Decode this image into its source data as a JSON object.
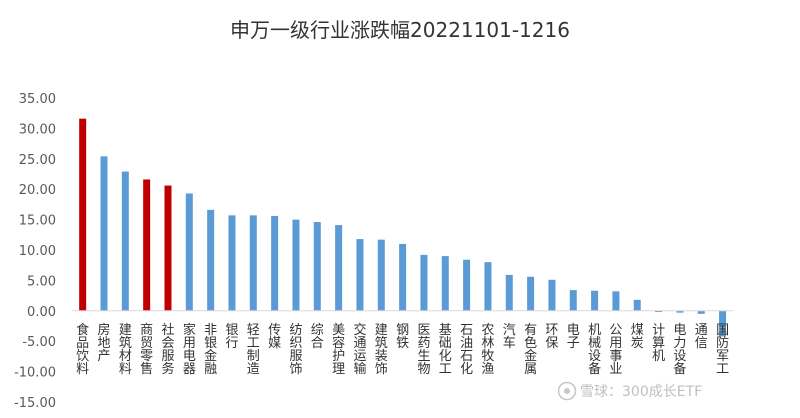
{
  "chart_data": {
    "type": "bar",
    "title": "申万一级行业涨跌幅20221101-1216",
    "xlabel": "",
    "ylabel": "",
    "ylim": [
      -15,
      35
    ],
    "yticks": [
      "-15.00",
      "-10.00",
      "-5.00",
      "0.00",
      "5.00",
      "10.00",
      "15.00",
      "20.00",
      "25.00",
      "30.00",
      "35.00"
    ],
    "grid": false,
    "legend": "none",
    "categories": [
      "食品饮料",
      "房地产",
      "建筑材料",
      "商贸零售",
      "社会服务",
      "家用电器",
      "非银金融",
      "银行",
      "轻工制造",
      "传媒",
      "纺织服饰",
      "综合",
      "美容护理",
      "交通运输",
      "建筑装饰",
      "钢铁",
      "医药生物",
      "基础化工",
      "石油石化",
      "农林牧渔",
      "汽车",
      "有色金属",
      "环保",
      "电子",
      "机械设备",
      "公用事业",
      "煤炭",
      "计算机",
      "电力设备",
      "通信",
      "国防军工"
    ],
    "values": [
      31.6,
      25.4,
      22.9,
      21.6,
      20.6,
      19.3,
      16.6,
      15.7,
      15.7,
      15.6,
      15.0,
      14.6,
      14.1,
      11.8,
      11.7,
      11.0,
      9.2,
      9.0,
      8.4,
      8.0,
      5.9,
      5.6,
      5.1,
      3.4,
      3.3,
      3.2,
      1.8,
      -0.2,
      -0.3,
      -0.5,
      -4.2
    ],
    "highlight_indices": [
      0,
      3,
      4
    ],
    "colors": {
      "default": "#5b9bd5",
      "highlight": "#c00000",
      "axis": "#d9d9d9"
    }
  },
  "watermark": {
    "icon": "snowball-icon",
    "text": "雪球：300成长ETF"
  }
}
